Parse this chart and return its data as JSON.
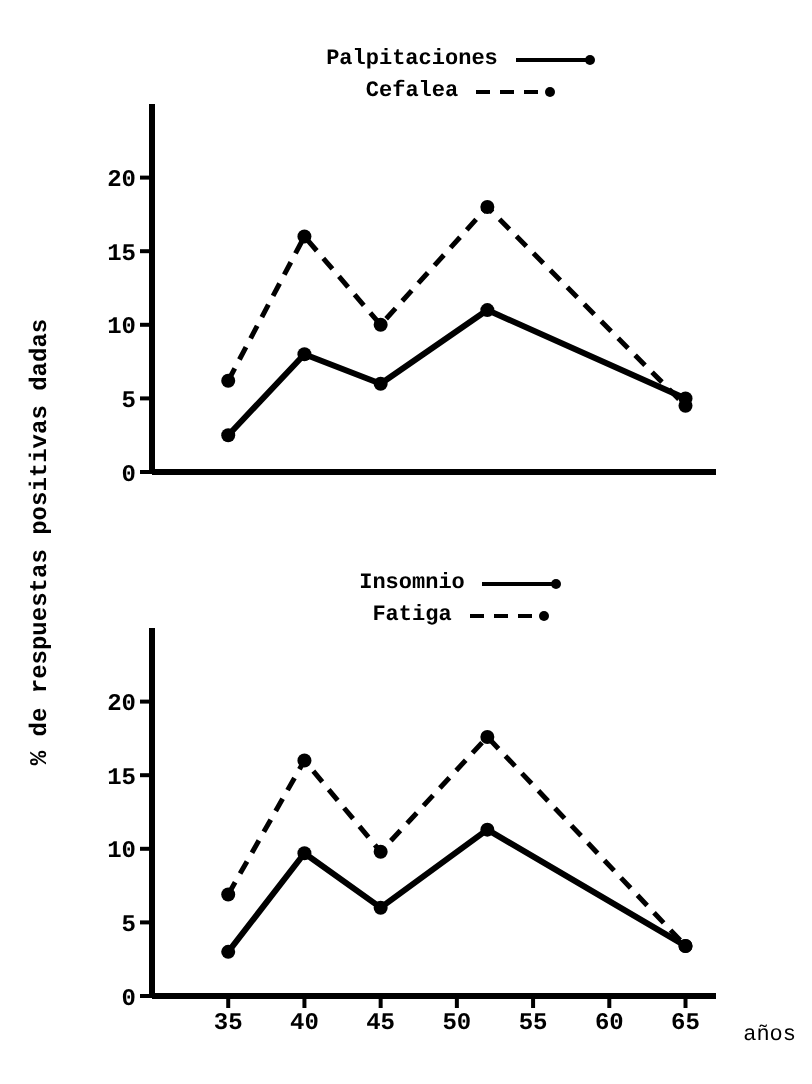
{
  "chart_data": [
    {
      "type": "line",
      "x": [
        35,
        40,
        45,
        52,
        65
      ],
      "xlim": [
        30,
        67
      ],
      "xticks": [
        35,
        40,
        45,
        50,
        55,
        60,
        65
      ],
      "ylim": [
        0,
        25
      ],
      "yticks": [
        0,
        5,
        10,
        15,
        20
      ],
      "tick_labels": "y",
      "legend": "top",
      "marker": "circle",
      "grid": false,
      "series": [
        {
          "name": "Palpitaciones",
          "color": "#000000",
          "line_style": "solid",
          "values": [
            2.5,
            8,
            6,
            11,
            5
          ]
        },
        {
          "name": "Cefalea",
          "color": "#000000",
          "line_style": "dashed",
          "values": [
            6.2,
            16,
            10,
            18,
            4.5
          ]
        }
      ]
    },
    {
      "type": "line",
      "x": [
        35,
        40,
        45,
        52,
        65
      ],
      "xlim": [
        30,
        67
      ],
      "xticks": [
        35,
        40,
        45,
        50,
        55,
        60,
        65
      ],
      "ylim": [
        0,
        25
      ],
      "yticks": [
        0,
        5,
        10,
        15,
        20
      ],
      "legend": "top",
      "marker": "circle",
      "grid": false,
      "xlabel": "años",
      "ylabel": "% de respuestas positivas dadas",
      "series": [
        {
          "name": "Insomnio",
          "color": "#000000",
          "line_style": "solid",
          "values": [
            3,
            9.7,
            6,
            11.3,
            3.4
          ]
        },
        {
          "name": "Fatiga",
          "color": "#000000",
          "line_style": "dashed",
          "values": [
            6.9,
            16,
            9.8,
            17.6,
            3.4
          ]
        }
      ]
    }
  ]
}
